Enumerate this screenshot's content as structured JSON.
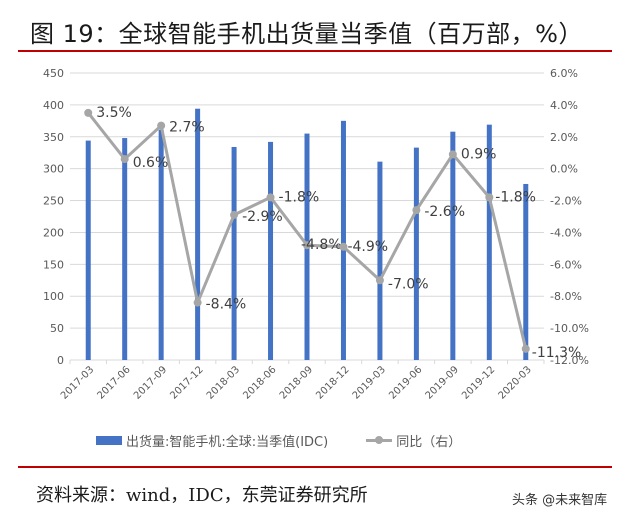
{
  "header": {
    "title": "图 19：全球智能手机出货量当季值（百万部，%）"
  },
  "legend": {
    "bar_label": "出货量:智能手机:全球:当季值(IDC)",
    "line_label": "同比（右）"
  },
  "footer": {
    "source": "资料来源：wind，IDC，东莞证券研究所",
    "watermark": "头条 @未来智库"
  },
  "colors": {
    "bar": "#4472c4",
    "line": "#a6a6a6",
    "rule": "#c00000",
    "grid": "#d9d9d9",
    "axis_text": "#595959",
    "label_text": "#404040"
  },
  "chart_data": {
    "type": "bar+line",
    "title": "图 19：全球智能手机出货量当季值（百万部，%）",
    "categories": [
      "2017-03",
      "2017-06",
      "2017-09",
      "2017-12",
      "2018-03",
      "2018-06",
      "2018-09",
      "2018-12",
      "2019-03",
      "2019-06",
      "2019-09",
      "2019-12",
      "2020-03"
    ],
    "series": [
      {
        "name": "出货量:智能手机:全球:当季值(IDC)",
        "type": "bar",
        "axis": "left",
        "values": [
          344,
          348,
          361,
          394,
          334,
          342,
          355,
          375,
          311,
          333,
          358,
          369,
          276
        ]
      },
      {
        "name": "同比（右）",
        "type": "line",
        "axis": "right",
        "values": [
          3.5,
          0.6,
          2.7,
          -8.4,
          -2.9,
          -1.8,
          -4.8,
          -4.9,
          -7.0,
          -2.6,
          0.9,
          -1.8,
          -11.3
        ],
        "labels": [
          "3.5%",
          "0.6%",
          "2.7%",
          "-8.4%",
          "-2.9%",
          "-1.8%",
          "-4.8%",
          "-4.9%",
          "-7.0%",
          "-2.6%",
          "0.9%",
          "-1.8%",
          "-11.3%"
        ]
      }
    ],
    "left_axis": {
      "min": 0,
      "max": 450,
      "step": 50,
      "ticks": [
        "0",
        "50",
        "100",
        "150",
        "200",
        "250",
        "300",
        "350",
        "400",
        "450"
      ]
    },
    "right_axis": {
      "min": -12,
      "max": 6,
      "step": 2,
      "ticks": [
        "-12.0%",
        "-10.0%",
        "-8.0%",
        "-6.0%",
        "-4.0%",
        "-2.0%",
        "0.0%",
        "2.0%",
        "4.0%",
        "6.0%"
      ]
    },
    "xlabel": "",
    "ylabel_left": "",
    "ylabel_right": "",
    "grid": true,
    "legend_position": "bottom"
  }
}
